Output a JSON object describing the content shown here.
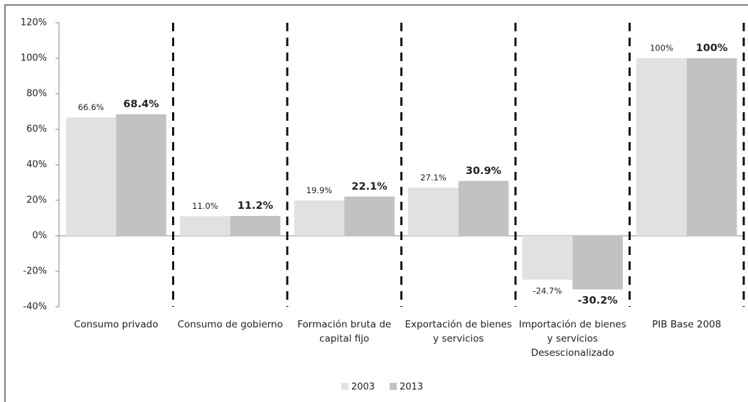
{
  "chart_data": {
    "type": "bar",
    "categories": [
      "Consumo privado",
      "Consumo de gobierno",
      "Formación bruta de capital fijo",
      "Exportación de bienes y servicios",
      "Importación de bienes y servicios Desescionalizado",
      "PIB Base 2008"
    ],
    "series": [
      {
        "name": "2003",
        "color": "#e1e1e1",
        "values": [
          66.6,
          11.0,
          19.9,
          27.1,
          -24.7,
          100
        ],
        "value_labels": [
          "66.6%",
          "11.0%",
          "19.9%",
          "27.1%",
          "-24.7%",
          "100%"
        ]
      },
      {
        "name": "2013",
        "color": "#c2c2c2",
        "values": [
          68.4,
          11.2,
          22.1,
          30.9,
          -30.2,
          100
        ],
        "value_labels": [
          "68.4%",
          "11.2%",
          "22.1%",
          "30.9%",
          "-30.2%",
          "100%"
        ]
      }
    ],
    "ylim": [
      -40,
      120
    ],
    "yticks": [
      {
        "value": -40,
        "label": "-40%"
      },
      {
        "value": -20,
        "label": "-20%"
      },
      {
        "value": 0,
        "label": "0%"
      },
      {
        "value": 20,
        "label": "20%"
      },
      {
        "value": 40,
        "label": "40%"
      },
      {
        "value": 60,
        "label": "60%"
      },
      {
        "value": 80,
        "label": "80%"
      },
      {
        "value": 100,
        "label": "100%"
      },
      {
        "value": 120,
        "label": "120%"
      }
    ],
    "legend": "bottom"
  }
}
